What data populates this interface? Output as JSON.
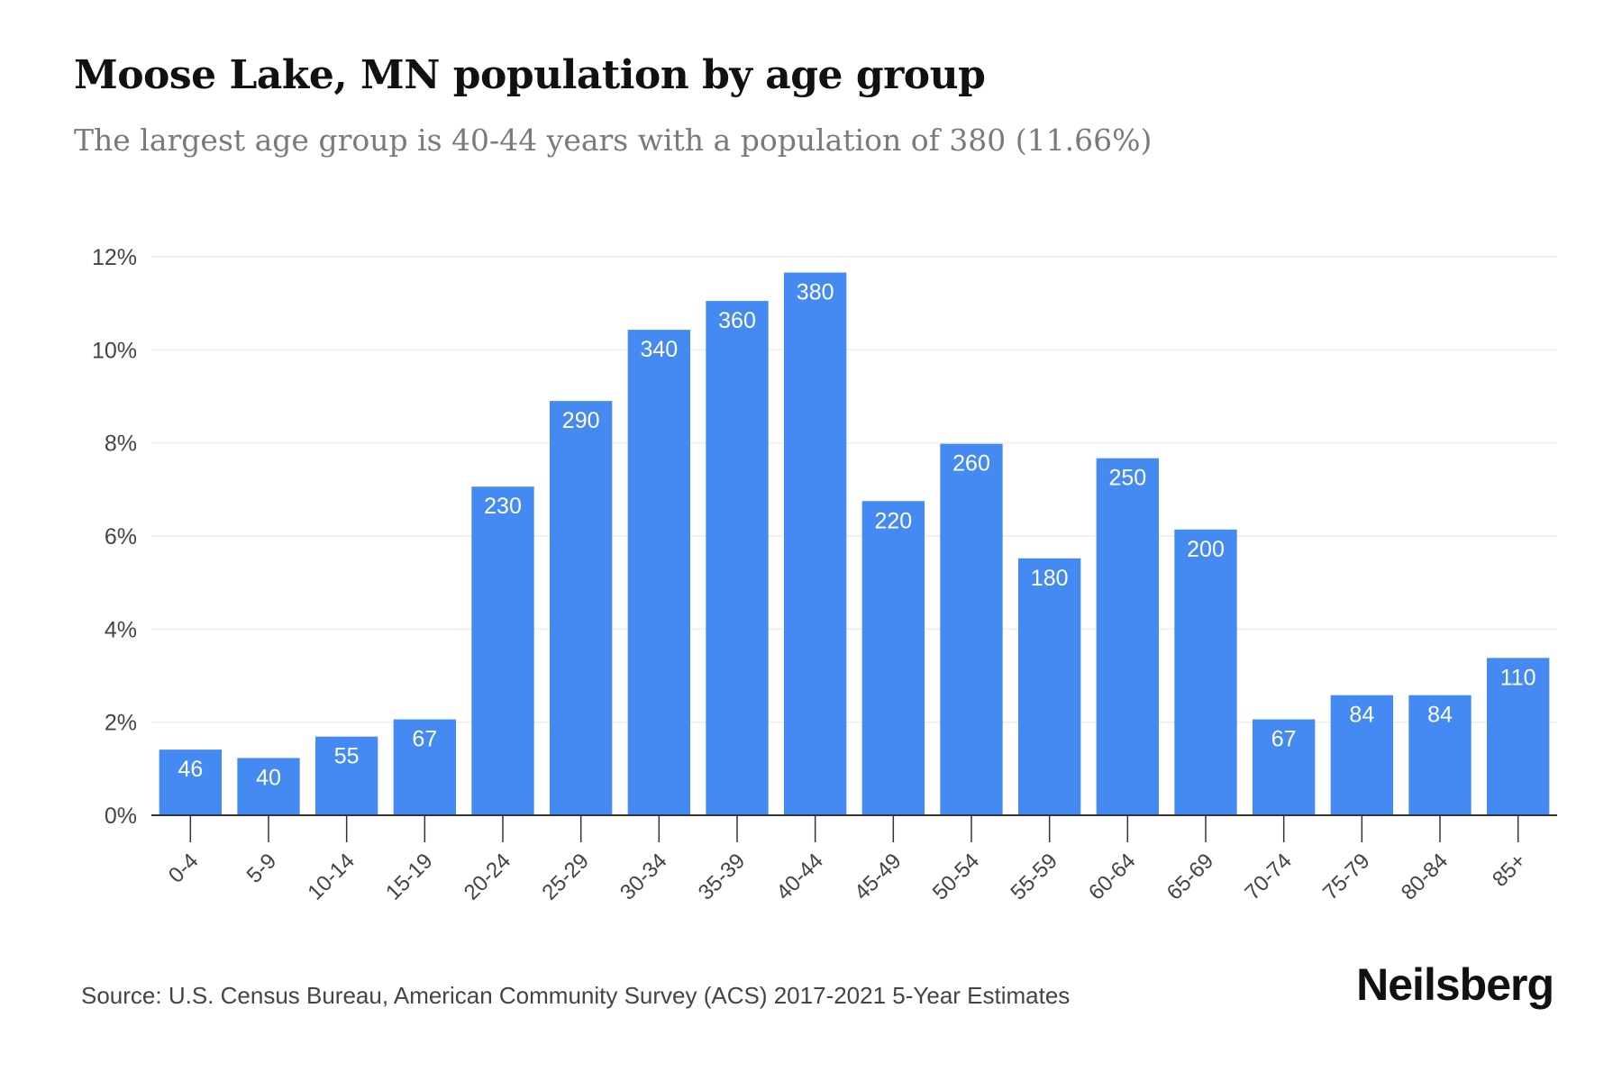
{
  "header": {
    "title": "Moose Lake, MN population by age group",
    "subtitle": "The largest age group is 40-44 years with a population of 380 (11.66%)"
  },
  "footer": {
    "source": "Source: U.S. Census Bureau, American Community Survey (ACS) 2017-2021 5-Year Estimates",
    "brand": "Neilsberg"
  },
  "colors": {
    "bar": "#4589f3",
    "bar_label": "#ffffff",
    "grid": "#eeeeee",
    "axis": "#333333",
    "tick_text": "#444444"
  },
  "chart_data": {
    "type": "bar",
    "categories": [
      "0-4",
      "5-9",
      "10-14",
      "15-19",
      "20-24",
      "25-29",
      "30-34",
      "35-39",
      "40-44",
      "45-49",
      "50-54",
      "55-59",
      "60-64",
      "65-69",
      "70-74",
      "75-79",
      "80-84",
      "85+"
    ],
    "values": [
      1.41,
      1.23,
      1.69,
      2.06,
      7.06,
      8.9,
      10.43,
      11.05,
      11.66,
      6.75,
      7.98,
      5.52,
      7.67,
      6.14,
      2.06,
      2.58,
      2.58,
      3.38
    ],
    "data_labels": [
      "46",
      "40",
      "55",
      "67",
      "230",
      "290",
      "340",
      "360",
      "380",
      "220",
      "260",
      "180",
      "250",
      "200",
      "67",
      "84",
      "84",
      "110"
    ],
    "y_ticks": [
      "0%",
      "2%",
      "4%",
      "6%",
      "8%",
      "10%",
      "12%"
    ],
    "y_tick_values": [
      0,
      2,
      4,
      6,
      8,
      10,
      12
    ],
    "ylim": [
      0,
      12
    ],
    "xlabel": "",
    "ylabel": "",
    "grid": true,
    "legend": "none"
  }
}
